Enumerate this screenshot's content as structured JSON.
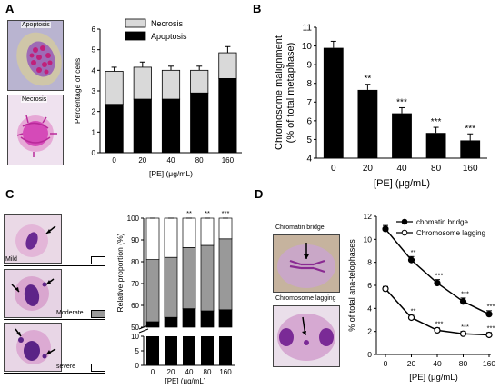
{
  "panels": {
    "a": {
      "letter": "A",
      "micro_labels": [
        "Apoptosis",
        "Necrosis"
      ]
    },
    "b": {
      "letter": "B"
    },
    "c": {
      "letter": "C",
      "severity_labels": [
        "Mild",
        "Moderate",
        "severe"
      ],
      "severity_colors": [
        "#000000",
        "#999999",
        "#ffffff"
      ]
    },
    "d": {
      "letter": "D",
      "micro_labels": [
        "Chromatin bridge",
        "Chromosome lagging"
      ]
    }
  },
  "chart_data": [
    {
      "id": "A",
      "type": "bar",
      "stacked": true,
      "categories": [
        "0",
        "20",
        "40",
        "80",
        "160"
      ],
      "series": [
        {
          "name": "Apoptosis",
          "color": "#000000",
          "values": [
            2.35,
            2.6,
            2.6,
            2.9,
            3.6
          ],
          "errors": [
            0.25,
            0.15,
            0.2,
            0.2,
            0.3
          ]
        },
        {
          "name": "Necrosis",
          "color": "#d9d9d9",
          "values": [
            1.6,
            1.55,
            1.4,
            1.1,
            1.25
          ],
          "errors": [
            0.2,
            0.25,
            0.2,
            0.2,
            0.3
          ]
        }
      ],
      "ylabel": "Percentage of cells",
      "xlabel": "[PE]  (μg/mL)",
      "ylim": [
        0,
        6
      ],
      "yticks": [
        "0",
        "1",
        "2",
        "3",
        "4",
        "5",
        "6"
      ],
      "legend": "top-right"
    },
    {
      "id": "B",
      "type": "bar",
      "categories": [
        "0",
        "20",
        "40",
        "80",
        "160"
      ],
      "values": [
        9.9,
        7.65,
        6.4,
        5.35,
        4.95
      ],
      "errors": [
        0.35,
        0.3,
        0.3,
        0.3,
        0.35
      ],
      "significance": [
        "",
        "**",
        "***",
        "***",
        "***"
      ],
      "ylabel": "Chromosome malignment\n(% of total metaphase)",
      "ylabel_lines": [
        "Chromosome malignment",
        "(% of total metaphase)"
      ],
      "xlabel": "[PE]  (μg/mL)",
      "ylim": [
        4,
        11
      ],
      "yticks": [
        "4",
        "5",
        "6",
        "7",
        "8",
        "9",
        "10",
        "11"
      ]
    },
    {
      "id": "C",
      "type": "bar",
      "stacked": true,
      "broken_axis": true,
      "categories": [
        "0",
        "20",
        "40",
        "80",
        "160"
      ],
      "series": [
        {
          "name": "Mild",
          "color": "#000000",
          "values": [
            52.5,
            54.5,
            58.5,
            57.5,
            58.0
          ],
          "errors": [
            1.2,
            1.5,
            1.5,
            1.8,
            1.8
          ]
        },
        {
          "name": "Moderate",
          "color": "#999999",
          "values": [
            28.5,
            27.5,
            28.0,
            30.0,
            32.5
          ],
          "errors": [
            1.0,
            1.5,
            1.2,
            1.5,
            1.5
          ]
        },
        {
          "name": "severe",
          "color": "#ffffff",
          "values": [
            19.0,
            18.0,
            13.5,
            12.5,
            9.5
          ],
          "errors": [
            0.8,
            0.8,
            0.8,
            0.8,
            0.8
          ]
        }
      ],
      "significance": [
        "",
        "",
        "**",
        "**",
        "***"
      ],
      "ylabel": "Relative proportion (%)",
      "xlabel": "[PE]  (μg/mL)",
      "ylim": [
        0,
        100
      ],
      "yticks_upper": [
        "50",
        "60",
        "70",
        "80",
        "90",
        "100"
      ],
      "yticks_lower": [
        "0",
        "5",
        "10"
      ]
    },
    {
      "id": "D",
      "type": "line",
      "x": [
        "0",
        "20",
        "40",
        "80",
        "160"
      ],
      "series": [
        {
          "name": "chomatin bridge",
          "marker": "filled",
          "values": [
            10.9,
            8.2,
            6.2,
            4.6,
            3.5
          ],
          "errors": [
            0.3,
            0.3,
            0.3,
            0.3,
            0.3
          ],
          "significance": [
            "",
            "**",
            "***",
            "***",
            "***"
          ]
        },
        {
          "name": "Chromosome lagging",
          "marker": "open",
          "values": [
            5.7,
            3.2,
            2.1,
            1.8,
            1.7
          ],
          "errors": [
            0.2,
            0.2,
            0.2,
            0.2,
            0.2
          ],
          "significance": [
            "",
            "**",
            "***",
            "***",
            "***"
          ]
        }
      ],
      "ylabel": "% of total ana-telophases",
      "xlabel": "[PE]  (μg/mL)",
      "ylim": [
        0,
        12
      ],
      "yticks": [
        "0",
        "2",
        "4",
        "6",
        "8",
        "10",
        "12"
      ],
      "legend": "top-right"
    }
  ]
}
